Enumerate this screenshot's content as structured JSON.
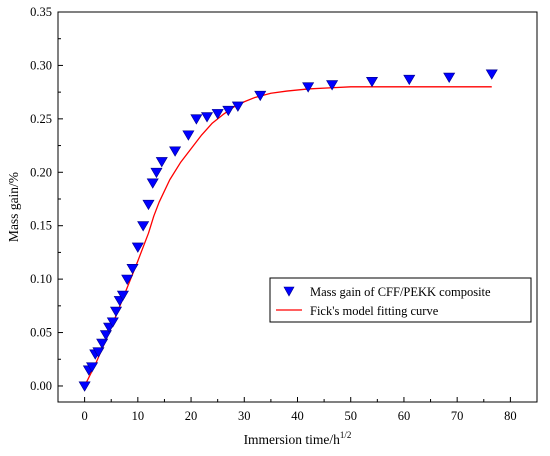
{
  "chart_data": {
    "type": "scatter",
    "xlabel": "Immersion time/h",
    "xlabel_sup": "1/2",
    "ylabel": "Mass gain/%",
    "xlim": [
      -5,
      85
    ],
    "ylim": [
      -0.015,
      0.35
    ],
    "x_ticks": [
      "0",
      "10",
      "20",
      "30",
      "40",
      "50",
      "60",
      "70",
      "80"
    ],
    "y_ticks": [
      "0.00",
      "0.05",
      "0.10",
      "0.15",
      "0.20",
      "0.25",
      "0.30",
      "0.35"
    ],
    "legend_position": "center-right",
    "series": [
      {
        "name": "Mass gain of CFF/PEKK composite",
        "kind": "scatter",
        "marker": "down-triangle",
        "color": "#0000ff",
        "x": [
          0,
          0.8,
          1.4,
          2.0,
          2.6,
          3.3,
          4.0,
          4.6,
          5.3,
          5.9,
          6.6,
          7.2,
          8.0,
          9.0,
          10.0,
          11.0,
          12.0,
          12.8,
          13.5,
          14.5,
          17.0,
          19.5,
          21.0,
          23.0,
          25.0,
          27.0,
          28.8,
          33.0,
          42.0,
          46.5,
          54.0,
          61.0,
          68.5,
          76.5
        ],
        "y": [
          0.0,
          0.015,
          0.018,
          0.03,
          0.032,
          0.04,
          0.048,
          0.055,
          0.06,
          0.07,
          0.08,
          0.085,
          0.1,
          0.11,
          0.13,
          0.15,
          0.17,
          0.19,
          0.2,
          0.21,
          0.22,
          0.235,
          0.25,
          0.252,
          0.255,
          0.258,
          0.262,
          0.272,
          0.28,
          0.282,
          0.285,
          0.287,
          0.289,
          0.292
        ]
      },
      {
        "name": "Fick's model fitting curve",
        "kind": "line",
        "color": "#ff0000",
        "x": [
          0,
          2,
          4,
          6,
          8,
          10,
          12,
          13,
          14,
          16,
          18,
          20,
          22,
          24,
          26,
          28,
          30,
          32,
          35,
          38,
          42,
          46,
          50,
          55,
          60,
          65,
          70,
          76.5
        ],
        "y": [
          0.0,
          0.02,
          0.043,
          0.067,
          0.092,
          0.117,
          0.143,
          0.159,
          0.172,
          0.193,
          0.209,
          0.222,
          0.235,
          0.246,
          0.254,
          0.261,
          0.266,
          0.27,
          0.274,
          0.276,
          0.278,
          0.279,
          0.28,
          0.28,
          0.28,
          0.28,
          0.28,
          0.28
        ]
      }
    ]
  }
}
